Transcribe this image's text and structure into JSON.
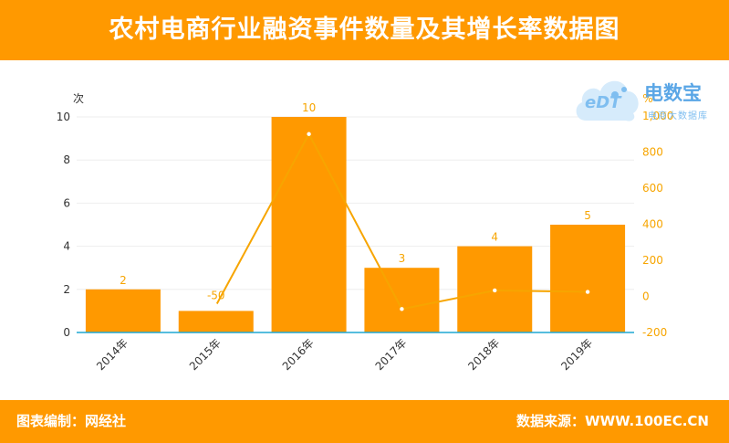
{
  "header": {
    "title": "农村电商行业融资事件数量及其增长率数据图"
  },
  "footer": {
    "left": "图表编制：网经社",
    "right": "数据来源：WWW.100EC.CN"
  },
  "logo": {
    "brand": "电数宝",
    "sub": "电商大数据库",
    "mark": "eDT"
  },
  "colors": {
    "accent": "#ff9900",
    "line": "#f7a500",
    "axis_baseline": "#1fa7d4"
  },
  "chart_data": {
    "type": "bar",
    "categories": [
      "2014年",
      "2015年",
      "2016年",
      "2017年",
      "2018年",
      "2019年"
    ],
    "series": [
      {
        "values": [
          2,
          1,
          10,
          3,
          4,
          5
        ],
        "data_labels": [
          "2",
          "",
          "10",
          "3",
          "4",
          "5"
        ]
      },
      {
        "values": [
          null,
          -50,
          900,
          -70,
          33,
          25
        ],
        "data_labels": [
          "",
          "-50",
          "",
          "",
          "",
          ""
        ]
      }
    ],
    "y_left": {
      "label": "次",
      "ylim": [
        0,
        10
      ],
      "ticks": [
        "0",
        "2",
        "4",
        "6",
        "8",
        "10"
      ]
    },
    "y_right": {
      "label": "%",
      "ylim": [
        -200,
        1000
      ],
      "ticks": [
        "-200",
        "0",
        "200",
        "400",
        "600",
        "800",
        "1,000"
      ]
    },
    "grid": true
  }
}
